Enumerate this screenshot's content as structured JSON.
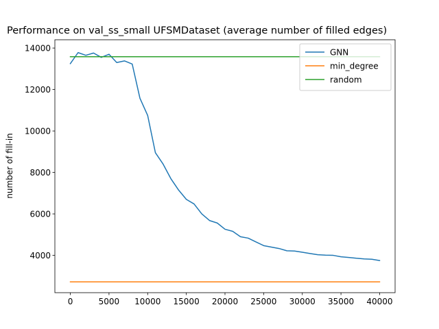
{
  "chart_data": {
    "type": "line",
    "title": "Performance on val_ss_small UFSMDataset (average number of filled edges)",
    "xlabel": "",
    "ylabel": "number of fill-in",
    "xlim": [
      -2000,
      42000
    ],
    "ylim": [
      2200,
      14400
    ],
    "x_ticks": [
      0,
      5000,
      10000,
      15000,
      20000,
      25000,
      30000,
      35000,
      40000
    ],
    "y_ticks": [
      4000,
      6000,
      8000,
      10000,
      12000,
      14000
    ],
    "grid": false,
    "legend_position": "top-right",
    "series": [
      {
        "name": "GNN",
        "color": "#1f77b4",
        "x": [
          0,
          1000,
          2000,
          3000,
          4000,
          5000,
          6000,
          7000,
          8000,
          9000,
          10000,
          11000,
          12000,
          13000,
          14000,
          15000,
          16000,
          17000,
          18000,
          19000,
          20000,
          21000,
          22000,
          23000,
          24000,
          25000,
          26000,
          27000,
          28000,
          29000,
          30000,
          31000,
          32000,
          33000,
          34000,
          35000,
          36000,
          37000,
          38000,
          39000,
          40000
        ],
        "y": [
          13250,
          13780,
          13650,
          13760,
          13550,
          13700,
          13300,
          13380,
          13230,
          11580,
          10750,
          8950,
          8400,
          7700,
          7150,
          6700,
          6480,
          6000,
          5680,
          5560,
          5260,
          5160,
          4900,
          4830,
          4650,
          4470,
          4400,
          4330,
          4220,
          4210,
          4150,
          4090,
          4030,
          4010,
          4000,
          3930,
          3900,
          3860,
          3830,
          3810,
          3750
        ]
      },
      {
        "name": "min_degree",
        "color": "#ff7f0e",
        "x": [
          0,
          40000
        ],
        "y": [
          2720,
          2720
        ]
      },
      {
        "name": "random",
        "color": "#2ca02c",
        "x": [
          0,
          40000
        ],
        "y": [
          13580,
          13580
        ]
      }
    ]
  }
}
